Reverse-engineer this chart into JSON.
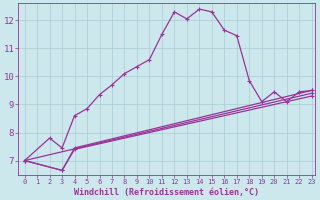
{
  "xlabel": "Windchill (Refroidissement éolien,°C)",
  "xlim": [
    -0.5,
    23.3
  ],
  "ylim": [
    6.5,
    12.6
  ],
  "xticks": [
    0,
    1,
    2,
    3,
    4,
    5,
    6,
    7,
    8,
    9,
    10,
    11,
    12,
    13,
    14,
    15,
    16,
    17,
    18,
    19,
    20,
    21,
    22,
    23
  ],
  "yticks": [
    7,
    8,
    9,
    10,
    11,
    12
  ],
  "bg_color": "#cce8ec",
  "grid_color": "#aaccd4",
  "line_color": "#993399",
  "main_curve_x": [
    0,
    2,
    3,
    4,
    5,
    6,
    7,
    8,
    9,
    10,
    11,
    12,
    13,
    14,
    15,
    16,
    17,
    18,
    19,
    20,
    21,
    22,
    23
  ],
  "main_curve_y": [
    7.0,
    7.8,
    7.45,
    8.6,
    8.85,
    9.35,
    9.7,
    10.1,
    10.35,
    10.6,
    11.5,
    12.3,
    12.05,
    12.4,
    12.3,
    11.65,
    11.45,
    9.85,
    9.1,
    9.45,
    9.1,
    9.45,
    9.5
  ],
  "line2_x": [
    0,
    3,
    4,
    23
  ],
  "line2_y": [
    7.0,
    6.65,
    7.45,
    9.5
  ],
  "line3_x": [
    0,
    3,
    4,
    23
  ],
  "line3_y": [
    7.0,
    6.65,
    7.4,
    9.3
  ],
  "line4_x": [
    0,
    23
  ],
  "line4_y": [
    7.0,
    9.4
  ],
  "markersize": 2.5
}
